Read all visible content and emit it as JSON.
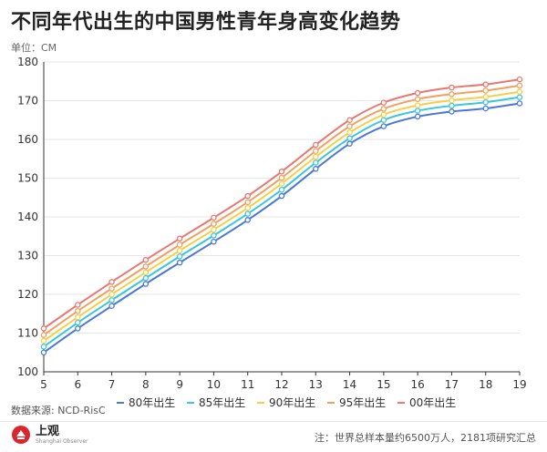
{
  "title": "不同年代出生的中国男性青年身高变化趋势",
  "unit_label": "单位：CM",
  "source": "数据来源: NCD-RisC",
  "logo": {
    "main": "上观",
    "sub": "Shanghai Observer"
  },
  "note": "注：世界总样本量约6500万人，2181项研究汇总",
  "chart_data": {
    "type": "line",
    "title": "不同年代出生的中国男性青年身高变化趋势",
    "ylabel": "单位：CM",
    "xlabel": "",
    "x": [
      5,
      6,
      7,
      8,
      9,
      10,
      11,
      12,
      13,
      14,
      15,
      16,
      17,
      18,
      19
    ],
    "xlim": [
      5,
      19
    ],
    "ylim": [
      100,
      180
    ],
    "yticks": [
      100,
      110,
      120,
      130,
      140,
      150,
      160,
      170,
      180
    ],
    "grid": "horizontal",
    "legend": "bottom",
    "series": [
      {
        "name": "80年出生",
        "color": "#4a78d8",
        "values": [
          105.0,
          111.2,
          117.0,
          122.7,
          128.2,
          133.6,
          139.2,
          145.4,
          152.4,
          158.9,
          163.4,
          165.9,
          167.2,
          168.0,
          169.3
        ]
      },
      {
        "name": "85年出生",
        "color": "#3cc6d8",
        "values": [
          106.5,
          112.7,
          118.5,
          124.2,
          129.8,
          135.2,
          140.8,
          147.0,
          154.0,
          160.3,
          165.0,
          167.4,
          168.7,
          169.6,
          170.9
        ]
      },
      {
        "name": "90年出生",
        "color": "#f5cf4a",
        "values": [
          108.0,
          114.1,
          120.0,
          125.7,
          131.3,
          136.7,
          142.3,
          148.6,
          155.5,
          161.8,
          166.4,
          168.8,
          170.1,
          171.0,
          172.3
        ]
      },
      {
        "name": "95年出生",
        "color": "#f0a060",
        "values": [
          109.5,
          115.7,
          121.5,
          127.2,
          132.8,
          138.2,
          143.8,
          150.1,
          157.0,
          163.4,
          167.9,
          170.4,
          171.7,
          172.6,
          173.9
        ]
      },
      {
        "name": "00年出生",
        "color": "#e87870",
        "values": [
          111.2,
          117.3,
          123.2,
          128.9,
          134.4,
          139.8,
          145.4,
          151.7,
          158.6,
          165.0,
          169.5,
          172.0,
          173.4,
          174.2,
          175.5
        ]
      }
    ]
  }
}
